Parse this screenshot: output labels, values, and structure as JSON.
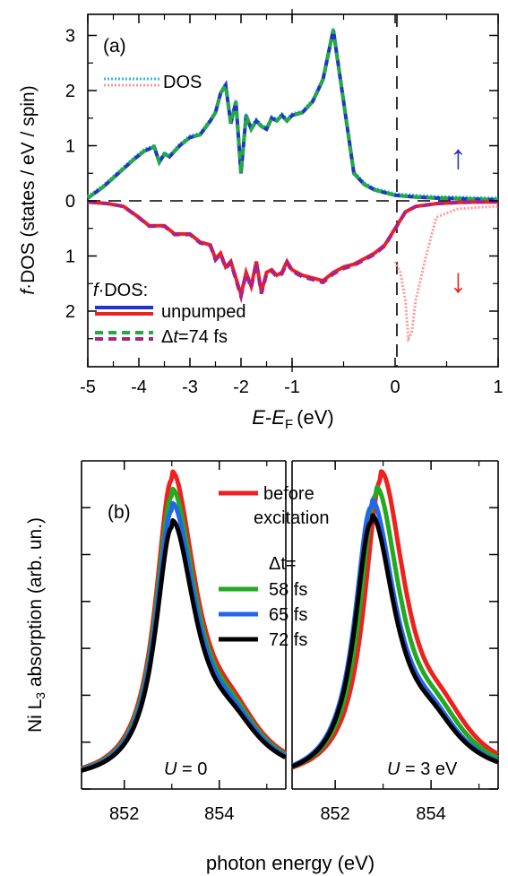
{
  "chart_data": [
    {
      "panel": "(a)",
      "type": "line",
      "xlabel_italic": "E",
      "xlabel_dash": "-",
      "xlabel_italic2": "E",
      "xlabel_sub": "F",
      "xlabel_units": "(eV)",
      "ylabel_italic": "f",
      "ylabel_rest": "·DOS (states / eV / spin)",
      "xlim": [
        -5,
        1
      ],
      "x_break": {
        "left_range": [
          -5,
          -1
        ],
        "right_range": [
          -1,
          1
        ]
      },
      "xticks": [
        "-5",
        "-4",
        "-3",
        "-2",
        "-1",
        "0",
        "1"
      ],
      "yticks_up": [
        "3",
        "2",
        "1",
        "0"
      ],
      "yticks_down": [
        "1",
        "2"
      ],
      "ylim": [
        -2.7,
        3.3
      ],
      "legend_dos": "DOS",
      "legend_fdos_italic": "f",
      "legend_fdos_rest": "·DOS:",
      "legend_unpumped": "unpumped",
      "legend_dt_prefix": "Δ",
      "legend_dt_italic": "t",
      "legend_dt_rest": "=74 fs",
      "spin_up": "↑",
      "spin_down": "↓",
      "colors": {
        "up": "#2233cc",
        "down": "#ee2020",
        "pumped_up": "#22aa44",
        "pumped_down": "#aa2288",
        "dos_up": "#33bbdd",
        "dos_down": "#ff9999"
      },
      "series": [
        {
          "name": "unpumped",
          "spin": "up",
          "x": [
            -5,
            -4.7,
            -4.4,
            -4.1,
            -3.9,
            -3.7,
            -3.6,
            -3.5,
            -3.4,
            -3.2,
            -3.0,
            -2.8,
            -2.6,
            -2.5,
            -2.4,
            -2.3,
            -2.2,
            -2.1,
            -2.0,
            -1.9,
            -1.8,
            -1.7,
            -1.6,
            -1.5,
            -1.4,
            -1.3,
            -1.2,
            -1.1,
            -1.0,
            -0.9,
            -0.8,
            -0.7,
            -0.6,
            -0.5,
            -0.4,
            -0.3,
            -0.2,
            -0.1,
            0.0,
            0.2,
            0.4,
            0.6,
            0.8,
            1.0
          ],
          "y": [
            0.05,
            0.25,
            0.5,
            0.75,
            0.9,
            0.98,
            0.7,
            0.85,
            0.8,
            1.0,
            1.15,
            1.2,
            1.45,
            1.6,
            1.95,
            2.1,
            1.4,
            1.8,
            0.5,
            1.55,
            1.3,
            1.45,
            1.35,
            1.3,
            1.5,
            1.45,
            1.55,
            1.45,
            1.55,
            1.6,
            1.8,
            2.2,
            3.1,
            1.8,
            0.5,
            0.3,
            0.2,
            0.15,
            0.1,
            0.07,
            0.05,
            0.04,
            0.03,
            0.02
          ]
        },
        {
          "name": "unpumped",
          "spin": "down",
          "x": [
            -5,
            -4.6,
            -4.3,
            -4.0,
            -3.8,
            -3.5,
            -3.3,
            -3.0,
            -2.8,
            -2.6,
            -2.5,
            -2.4,
            -2.3,
            -2.2,
            -2.1,
            -2.0,
            -1.9,
            -1.8,
            -1.7,
            -1.6,
            -1.5,
            -1.4,
            -1.3,
            -1.2,
            -1.1,
            -1.0,
            -0.9,
            -0.8,
            -0.7,
            -0.6,
            -0.5,
            -0.4,
            -0.3,
            -0.2,
            -0.1,
            0.0,
            0.05,
            0.1,
            0.2,
            0.4,
            0.6,
            0.8,
            1.0
          ],
          "y": [
            0.02,
            0.05,
            0.1,
            0.3,
            0.45,
            0.45,
            0.6,
            0.6,
            0.75,
            0.8,
            1.05,
            0.95,
            1.2,
            1.1,
            1.4,
            1.7,
            1.3,
            1.55,
            1.1,
            1.65,
            1.3,
            1.25,
            1.35,
            1.3,
            1.1,
            1.25,
            1.35,
            1.4,
            1.45,
            1.3,
            1.2,
            1.15,
            1.05,
            0.95,
            0.8,
            0.5,
            0.35,
            0.2,
            0.1,
            0.05,
            0.03,
            0.02,
            0.02
          ]
        },
        {
          "name": "DOS",
          "spin": "down",
          "x": [
            0.0,
            0.05,
            0.1,
            0.13,
            0.16,
            0.2,
            0.25,
            0.3,
            0.4,
            0.6,
            0.8,
            1.0
          ],
          "y": [
            1.1,
            1.3,
            1.8,
            2.5,
            2.4,
            1.8,
            1.4,
            1.0,
            0.3,
            0.15,
            0.12,
            0.1
          ]
        }
      ]
    },
    {
      "panel": "(b)",
      "type": "line",
      "xlabel": "photon energy (eV)",
      "ylabel_pre": "Ni L",
      "ylabel_sub": "3",
      "ylabel_post": " absorption (arb. un.)",
      "xticks_left": [
        "852",
        "854"
      ],
      "xticks_right": [
        "852",
        "854"
      ],
      "xlim": [
        851.1,
        855.4
      ],
      "label_left_italic": "U",
      "label_left_rest": " = 0",
      "label_right_italic": "U",
      "label_right_rest": " = 3 eV",
      "legend_before_1": "before",
      "legend_before_2": "excitation",
      "legend_dt": "Δt=",
      "series": [
        {
          "name": "before excitation",
          "color": "#ee2020",
          "peak_left": 853.0,
          "peak_right": 852.95,
          "amp": 1.0
        },
        {
          "name": "58 fs",
          "color": "#22aa22",
          "peak_left": 853.0,
          "peak_right": 852.85,
          "amp": 0.95
        },
        {
          "name": "65 fs",
          "color": "#2266ee",
          "peak_left": 853.0,
          "peak_right": 852.75,
          "amp": 0.91
        },
        {
          "name": "72 fs",
          "color": "#000000",
          "peak_left": 853.0,
          "peak_right": 852.75,
          "amp": 0.86
        }
      ]
    }
  ]
}
